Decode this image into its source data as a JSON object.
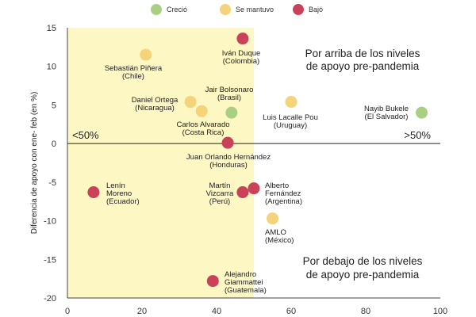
{
  "chart_data": {
    "type": "scatter",
    "title": "",
    "xlabel": "",
    "ylabel": "Diferencia de apoyo con ene- feb (en %)",
    "xlim": [
      0,
      100
    ],
    "ylim": [
      -20,
      15
    ],
    "x_ticks": [
      0,
      20,
      40,
      60,
      80,
      100
    ],
    "y_ticks": [
      -20,
      -15,
      -10,
      -5,
      0,
      5,
      10,
      15
    ],
    "grid": false,
    "highlight_region": {
      "x": [
        0,
        50
      ],
      "y": [
        -20,
        15
      ],
      "color": "#FDF7C3"
    },
    "legend": {
      "placement": "top",
      "entries": [
        {
          "name": "Creció",
          "color": "#A9CF82"
        },
        {
          "name": "Se mantuvo",
          "color": "#F5D37A"
        },
        {
          "name": "Bajó",
          "color": "#C9425A"
        }
      ]
    },
    "annotations": {
      "above": [
        "Por arriba de los niveles",
        "de apoyo pre-pandemia"
      ],
      "below": [
        "Por debajo de los niveles",
        "de apoyo pre-pandemia"
      ],
      "left": "<50%",
      "right": ">50%"
    },
    "points": [
      {
        "label": [
          "Iván Duque",
          "(Colombia)"
        ],
        "x": 47,
        "y": 13.6,
        "group": "Bajó"
      },
      {
        "label": [
          "Sebastián Piñera",
          "(Chile)"
        ],
        "x": 21,
        "y": 11.5,
        "group": "Se mantuvo"
      },
      {
        "label": [
          "Jair Bolsonaro",
          "(Brasil)"
        ],
        "x": 44,
        "y": 4.0,
        "group": "Creció"
      },
      {
        "label": [
          "Daniel Ortega",
          "(Nicaragua)"
        ],
        "x": 33,
        "y": 5.4,
        "group": "Se mantuvo"
      },
      {
        "label": [
          "Carlos Alvarado",
          "(Costa Rica)"
        ],
        "x": 36,
        "y": 4.2,
        "group": "Se mantuvo"
      },
      {
        "label": [
          "Luis Lacalle Pou",
          "(Uruguay)"
        ],
        "x": 60,
        "y": 5.4,
        "group": "Se mantuvo"
      },
      {
        "label": [
          "Nayib Bukele",
          "(El Salvador)"
        ],
        "x": 95,
        "y": 4.0,
        "group": "Creció"
      },
      {
        "label": [
          "Juan Orlando Hernández",
          "(Honduras)"
        ],
        "x": 43,
        "y": 0.1,
        "group": "Bajó"
      },
      {
        "label": [
          "Lenín",
          "Moreno",
          "(Ecuador)"
        ],
        "x": 7,
        "y": -6.3,
        "group": "Bajó"
      },
      {
        "label": [
          "Martín",
          "Vizcarra",
          "(Perú)"
        ],
        "x": 47,
        "y": -6.3,
        "group": "Bajó"
      },
      {
        "label": [
          "Alberto",
          "Fernández",
          "(Argentina)"
        ],
        "x": 50,
        "y": -5.8,
        "group": "Bajó"
      },
      {
        "label": [
          "AMLO",
          "(México)"
        ],
        "x": 55,
        "y": -9.7,
        "group": "Se mantuvo"
      },
      {
        "label": [
          "Alejandro",
          "Giammattei",
          "(Guatemala)"
        ],
        "x": 39,
        "y": -17.8,
        "group": "Bajó"
      }
    ]
  }
}
